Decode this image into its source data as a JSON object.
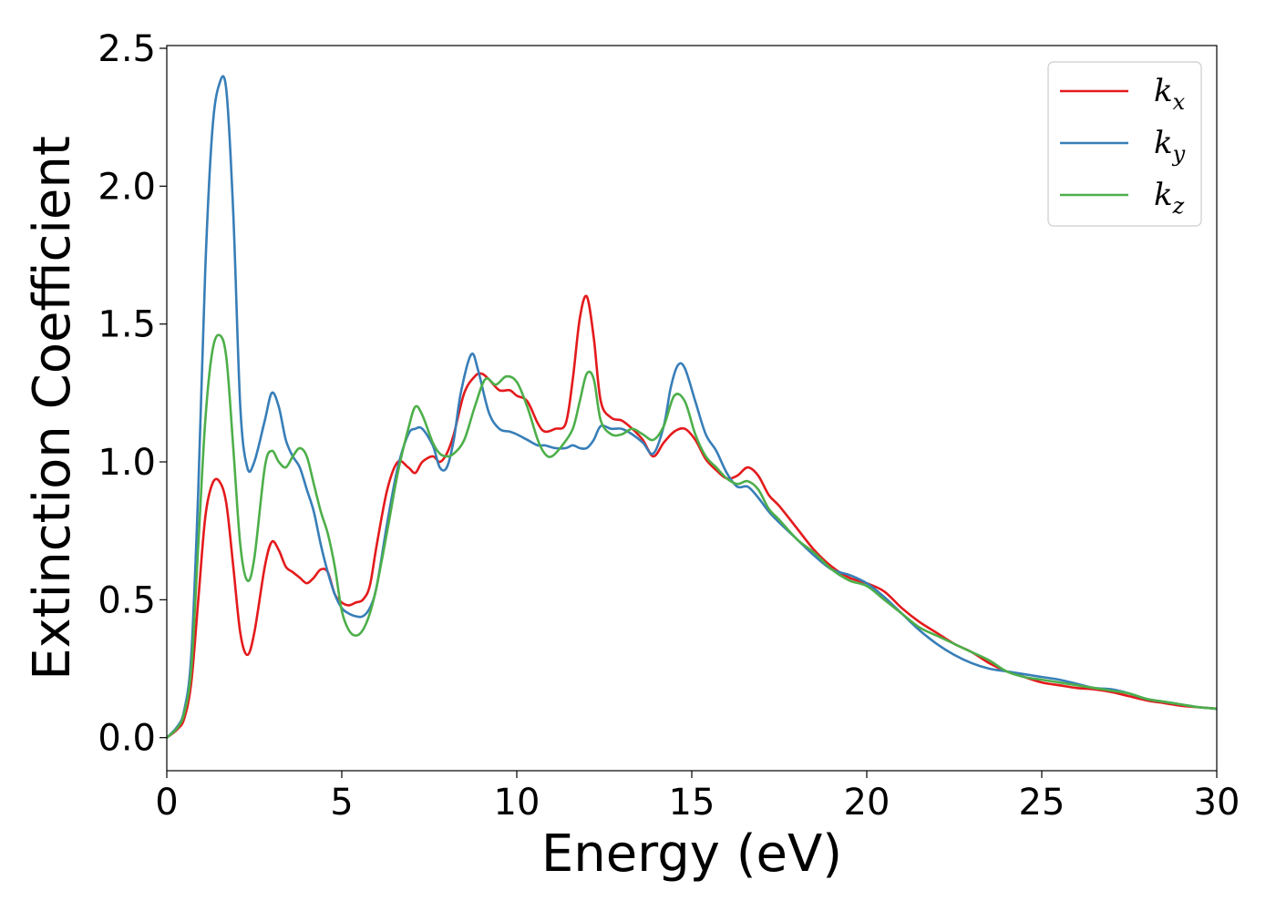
{
  "chart_data": {
    "type": "line",
    "xlabel": "Energy (eV)",
    "ylabel": "Extinction Coefficient",
    "xlim": [
      0,
      30
    ],
    "ylim": [
      -0.12,
      2.51
    ],
    "xticks": [
      0,
      5,
      10,
      15,
      20,
      25,
      30
    ],
    "xtick_labels": [
      "0",
      "5",
      "10",
      "15",
      "20",
      "25",
      "30"
    ],
    "yticks": [
      0.0,
      0.5,
      1.0,
      1.5,
      2.0,
      2.5
    ],
    "ytick_labels": [
      "0.0",
      "0.5",
      "1.0",
      "1.5",
      "2.0",
      "2.5"
    ],
    "grid": false,
    "legend_position": "top-right",
    "series": [
      {
        "name": "k",
        "sub": "x",
        "color": "#e41a1c",
        "x": [
          0,
          0.3,
          0.5,
          0.7,
          0.9,
          1.1,
          1.3,
          1.5,
          1.7,
          1.9,
          2.1,
          2.3,
          2.5,
          2.8,
          3.0,
          3.2,
          3.4,
          3.6,
          3.8,
          4.0,
          4.2,
          4.4,
          4.6,
          4.8,
          5.0,
          5.2,
          5.4,
          5.6,
          5.8,
          6.0,
          6.3,
          6.6,
          6.9,
          7.1,
          7.3,
          7.6,
          7.8,
          8.0,
          8.2,
          8.5,
          8.8,
          9.0,
          9.2,
          9.5,
          9.8,
          10.0,
          10.3,
          10.6,
          10.8,
          11.1,
          11.4,
          11.6,
          11.8,
          12.0,
          12.2,
          12.4,
          12.7,
          13.0,
          13.3,
          13.6,
          13.9,
          14.2,
          14.5,
          14.8,
          15.1,
          15.4,
          15.7,
          16.0,
          16.3,
          16.6,
          16.9,
          17.2,
          17.5,
          18.0,
          18.5,
          19.0,
          19.5,
          20.0,
          20.5,
          21.0,
          21.5,
          22.0,
          22.5,
          23.0,
          23.5,
          24.0,
          24.5,
          25.0,
          25.5,
          26.0,
          26.5,
          27.0,
          27.5,
          28.0,
          28.5,
          29.0,
          29.5,
          30.0
        ],
        "y": [
          0.0,
          0.03,
          0.07,
          0.2,
          0.5,
          0.8,
          0.92,
          0.93,
          0.85,
          0.62,
          0.38,
          0.3,
          0.38,
          0.62,
          0.71,
          0.68,
          0.62,
          0.6,
          0.58,
          0.56,
          0.58,
          0.61,
          0.6,
          0.52,
          0.49,
          0.48,
          0.49,
          0.5,
          0.55,
          0.7,
          0.9,
          1.0,
          0.98,
          0.96,
          1.0,
          1.02,
          1.0,
          1.03,
          1.1,
          1.25,
          1.31,
          1.32,
          1.3,
          1.26,
          1.26,
          1.24,
          1.22,
          1.14,
          1.11,
          1.12,
          1.14,
          1.3,
          1.52,
          1.6,
          1.45,
          1.22,
          1.16,
          1.15,
          1.12,
          1.08,
          1.02,
          1.07,
          1.11,
          1.12,
          1.08,
          1.01,
          0.97,
          0.94,
          0.95,
          0.98,
          0.95,
          0.88,
          0.84,
          0.76,
          0.68,
          0.62,
          0.58,
          0.56,
          0.53,
          0.47,
          0.42,
          0.38,
          0.34,
          0.31,
          0.27,
          0.24,
          0.22,
          0.2,
          0.19,
          0.18,
          0.175,
          0.165,
          0.15,
          0.135,
          0.125,
          0.115,
          0.11,
          0.105
        ]
      },
      {
        "name": "k",
        "sub": "y",
        "color": "#377eb8",
        "x": [
          0,
          0.3,
          0.5,
          0.7,
          0.9,
          1.1,
          1.3,
          1.5,
          1.7,
          1.9,
          2.1,
          2.3,
          2.5,
          2.8,
          3.0,
          3.2,
          3.4,
          3.6,
          3.8,
          4.0,
          4.2,
          4.4,
          4.6,
          4.8,
          5.0,
          5.2,
          5.4,
          5.6,
          5.8,
          6.0,
          6.3,
          6.6,
          6.9,
          7.1,
          7.3,
          7.6,
          7.8,
          8.0,
          8.2,
          8.4,
          8.7,
          8.9,
          9.2,
          9.5,
          9.8,
          10.0,
          10.3,
          10.6,
          10.8,
          11.1,
          11.4,
          11.6,
          11.8,
          12.0,
          12.2,
          12.4,
          12.7,
          13.0,
          13.3,
          13.6,
          13.9,
          14.2,
          14.4,
          14.6,
          14.8,
          15.1,
          15.4,
          15.7,
          16.0,
          16.3,
          16.6,
          16.9,
          17.2,
          17.5,
          18.0,
          18.5,
          19.0,
          19.5,
          20.0,
          20.5,
          21.0,
          21.5,
          22.0,
          22.5,
          23.0,
          23.5,
          24.0,
          24.5,
          25.0,
          25.5,
          26.0,
          26.5,
          27.0,
          27.5,
          28.0,
          28.5,
          29.0,
          29.5,
          30.0
        ],
        "y": [
          0.0,
          0.04,
          0.1,
          0.3,
          0.9,
          1.7,
          2.2,
          2.37,
          2.35,
          1.9,
          1.2,
          0.98,
          1.0,
          1.15,
          1.25,
          1.2,
          1.08,
          1.02,
          0.98,
          0.9,
          0.82,
          0.7,
          0.6,
          0.52,
          0.47,
          0.45,
          0.44,
          0.44,
          0.47,
          0.55,
          0.78,
          0.98,
          1.1,
          1.12,
          1.12,
          1.06,
          0.98,
          0.98,
          1.08,
          1.25,
          1.39,
          1.33,
          1.18,
          1.12,
          1.11,
          1.1,
          1.08,
          1.06,
          1.06,
          1.05,
          1.05,
          1.06,
          1.05,
          1.05,
          1.08,
          1.13,
          1.12,
          1.12,
          1.1,
          1.07,
          1.03,
          1.13,
          1.27,
          1.35,
          1.34,
          1.22,
          1.1,
          1.04,
          0.96,
          0.91,
          0.91,
          0.87,
          0.82,
          0.78,
          0.72,
          0.66,
          0.61,
          0.59,
          0.56,
          0.51,
          0.45,
          0.39,
          0.34,
          0.3,
          0.27,
          0.25,
          0.24,
          0.23,
          0.22,
          0.21,
          0.195,
          0.18,
          0.175,
          0.16,
          0.14,
          0.13,
          0.12,
          0.11,
          0.105
        ]
      },
      {
        "name": "k",
        "sub": "z",
        "color": "#4daf4a",
        "x": [
          0,
          0.3,
          0.5,
          0.7,
          0.9,
          1.1,
          1.3,
          1.5,
          1.7,
          1.9,
          2.1,
          2.3,
          2.5,
          2.8,
          3.0,
          3.2,
          3.4,
          3.6,
          3.8,
          4.0,
          4.2,
          4.4,
          4.6,
          4.8,
          5.0,
          5.2,
          5.4,
          5.6,
          5.8,
          6.0,
          6.3,
          6.6,
          6.9,
          7.1,
          7.3,
          7.6,
          7.8,
          8.0,
          8.2,
          8.5,
          8.8,
          9.1,
          9.4,
          9.7,
          10.0,
          10.3,
          10.6,
          10.8,
          11.0,
          11.3,
          11.6,
          11.8,
          12.0,
          12.2,
          12.4,
          12.7,
          13.0,
          13.3,
          13.6,
          13.9,
          14.2,
          14.5,
          14.8,
          15.1,
          15.4,
          15.7,
          16.0,
          16.3,
          16.6,
          16.9,
          17.2,
          17.5,
          18.0,
          18.5,
          19.0,
          19.5,
          20.0,
          20.5,
          21.0,
          21.5,
          22.0,
          22.5,
          23.0,
          23.5,
          24.0,
          24.5,
          25.0,
          25.5,
          26.0,
          26.5,
          27.0,
          27.5,
          28.0,
          28.5,
          29.0,
          29.5,
          30.0
        ],
        "y": [
          0.0,
          0.035,
          0.09,
          0.25,
          0.7,
          1.15,
          1.4,
          1.46,
          1.38,
          1.05,
          0.7,
          0.57,
          0.65,
          0.98,
          1.04,
          1.0,
          0.98,
          1.02,
          1.05,
          1.02,
          0.92,
          0.82,
          0.74,
          0.62,
          0.46,
          0.39,
          0.37,
          0.39,
          0.45,
          0.55,
          0.75,
          0.96,
          1.12,
          1.2,
          1.17,
          1.07,
          1.03,
          1.02,
          1.03,
          1.08,
          1.2,
          1.3,
          1.28,
          1.31,
          1.29,
          1.2,
          1.08,
          1.03,
          1.02,
          1.06,
          1.12,
          1.22,
          1.32,
          1.3,
          1.15,
          1.1,
          1.1,
          1.12,
          1.1,
          1.08,
          1.13,
          1.24,
          1.22,
          1.1,
          1.02,
          0.98,
          0.94,
          0.92,
          0.93,
          0.9,
          0.83,
          0.79,
          0.72,
          0.67,
          0.61,
          0.57,
          0.55,
          0.5,
          0.45,
          0.4,
          0.37,
          0.34,
          0.31,
          0.28,
          0.24,
          0.22,
          0.21,
          0.2,
          0.19,
          0.18,
          0.17,
          0.16,
          0.14,
          0.13,
          0.12,
          0.11,
          0.105
        ]
      }
    ]
  }
}
